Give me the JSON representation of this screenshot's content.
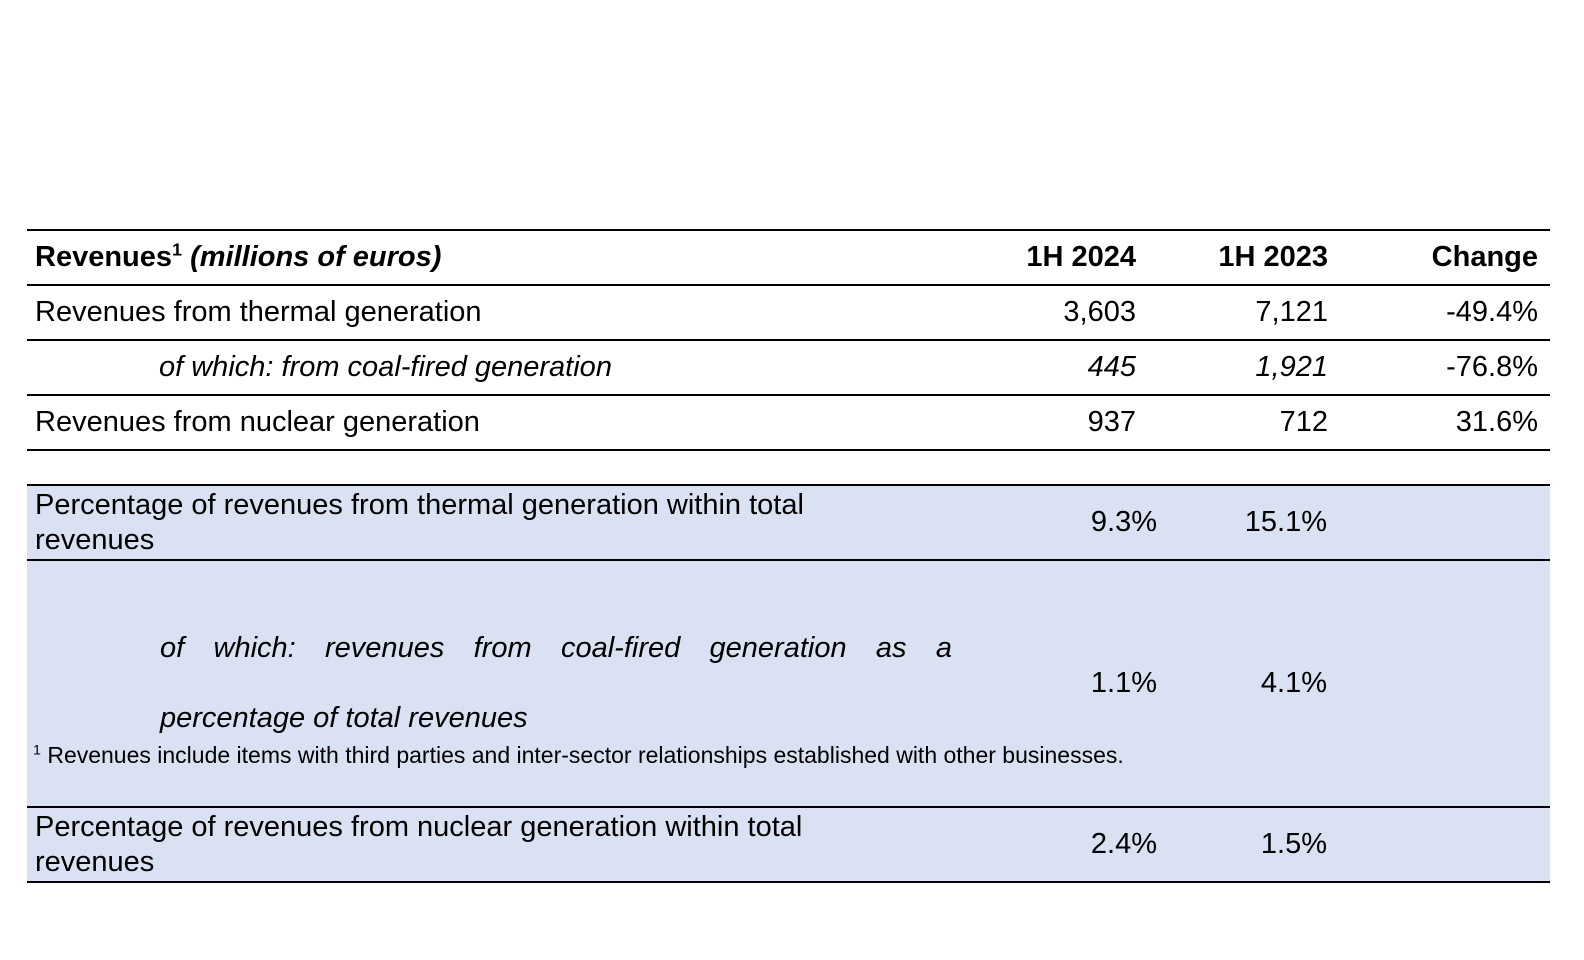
{
  "colors": {
    "background": "#ffffff",
    "row_shading": "#d9e1f2",
    "rule_lines": "#000000",
    "text": "#000000"
  },
  "revenues_table": {
    "title": "Revenues",
    "title_footnote_ref": "1",
    "title_unit": "(millions of euros)",
    "columns": [
      "1H 2024",
      "1H 2023",
      "Change"
    ],
    "rows": [
      {
        "label": "Revenues from thermal generation",
        "h1_2024": "3,603",
        "h1_2023": "7,121",
        "change": "-49.4%"
      },
      {
        "label": "of which: from coal-fired generation",
        "h1_2024": "445",
        "h1_2023": "1,921",
        "change": "-76.8%"
      },
      {
        "label": "Revenues from nuclear generation",
        "h1_2024": "937",
        "h1_2023": "712",
        "change": "31.6%"
      }
    ]
  },
  "percentage_table": {
    "rows": [
      {
        "label": "Percentage of revenues from thermal generation within total\nrevenues",
        "h1_2024": "9.3%",
        "h1_2023": "15.1%",
        "change": ""
      },
      {
        "label_line1": "of which: revenues from coal-fired generation as a",
        "label_line2": "percentage of total revenues",
        "h1_2024": "1.1%",
        "h1_2023": "4.1%",
        "change": ""
      },
      {
        "label": "Percentage of revenues from nuclear generation within total\nrevenues",
        "h1_2024": "2.4%",
        "h1_2023": "1.5%",
        "change": ""
      }
    ]
  },
  "footnote": {
    "ref": "1",
    "text": " Revenues include items with third parties and inter-sector relationships established with other businesses."
  }
}
